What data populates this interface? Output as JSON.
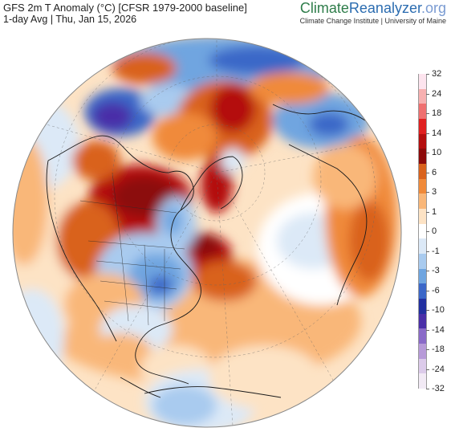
{
  "header": {
    "title": "GFS 2m T Anomaly (°C) [CFSR 1979-2000 baseline]",
    "subtitle": "1-day Avg | Thu, Jan 15, 2026"
  },
  "brand": {
    "name_part1": "Climate",
    "name_part2": "Reanalyzer",
    "name_part3": ".org",
    "tagline": "Climate Change Institute | University of Maine"
  },
  "map": {
    "projection": "orthographic-north-polar",
    "colorbar": {
      "labels": [
        "32",
        "24",
        "18",
        "14",
        "10",
        "6",
        "3",
        "1",
        "0",
        "-1",
        "-3",
        "-6",
        "-10",
        "-14",
        "-18",
        "-24",
        "-32"
      ],
      "colors": [
        "#fde4ee",
        "#f7b0b0",
        "#ef7070",
        "#e02020",
        "#b40e0e",
        "#8c0a0a",
        "#d9621c",
        "#f08a3a",
        "#f9b779",
        "#fde3c5",
        "#ffffff",
        "#dce9f7",
        "#a9cbef",
        "#6fa5e0",
        "#3b67c8",
        "#2230a0",
        "#4a2fa8",
        "#8a6ac8",
        "#b79ad8",
        "#dccbea",
        "#f2eaf5"
      ]
    }
  }
}
